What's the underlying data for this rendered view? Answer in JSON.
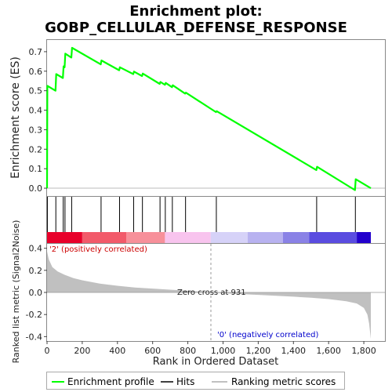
{
  "chart_data": {
    "type": "line",
    "title": "Enrichment plot: GOBP_CELLULAR_DEFENSE_RESPONSE",
    "title_lines": [
      "Enrichment plot:",
      "GOBP_CELLULAR_DEFENSE_RESPONSE"
    ],
    "xlabel": "Rank in Ordered Dataset",
    "xlim": [
      0,
      1920
    ],
    "x_ticks": [
      0,
      200,
      400,
      600,
      800,
      1000,
      1200,
      1400,
      1600,
      1800
    ],
    "x_tick_labels": [
      "0",
      "200",
      "400",
      "600",
      "800",
      "1,000",
      "1,200",
      "1,400",
      "1,600",
      "1,800"
    ],
    "panels": {
      "enrichment": {
        "ylabel": "Enrichment score (ES)",
        "ylim": [
          -0.04,
          0.76
        ],
        "y_ticks": [
          0.0,
          0.1,
          0.2,
          0.3,
          0.4,
          0.5,
          0.6,
          0.7
        ],
        "y_tick_labels": [
          "0.0",
          "0.1",
          "0.2",
          "0.3",
          "0.4",
          "0.5",
          "0.6",
          "0.7"
        ],
        "color": "#00ff00",
        "series": [
          {
            "name": "Enrichment profile",
            "x": [
              0,
              2,
              48,
              52,
              90,
              94,
              100,
              104,
              138,
              142,
              305,
              309,
              410,
              414,
              490,
              494,
              540,
              544,
              640,
              644,
              670,
              674,
              710,
              714,
              785,
              789,
              960,
              964,
              1530,
              1534,
              1750,
              1754,
              1840
            ],
            "y": [
              0.0,
              0.525,
              0.5,
              0.585,
              0.565,
              0.625,
              0.62,
              0.69,
              0.67,
              0.72,
              0.635,
              0.655,
              0.605,
              0.62,
              0.585,
              0.598,
              0.575,
              0.588,
              0.535,
              0.545,
              0.53,
              0.54,
              0.518,
              0.528,
              0.485,
              0.49,
              0.39,
              0.395,
              0.093,
              0.11,
              -0.01,
              0.046,
              0.0
            ]
          }
        ]
      },
      "hits": {
        "ylabel": "",
        "x": [
          2,
          50,
          92,
          102,
          140,
          307,
          412,
          492,
          542,
          642,
          672,
          712,
          787,
          962,
          1532,
          1752
        ]
      },
      "gradient_bar": {
        "segments": [
          {
            "x0": 0,
            "x1": 200,
            "color": "#e8002a"
          },
          {
            "x0": 200,
            "x1": 450,
            "color": "#f25a6a"
          },
          {
            "x0": 450,
            "x1": 670,
            "color": "#f7909a"
          },
          {
            "x0": 670,
            "x1": 930,
            "color": "#f8c4ee"
          },
          {
            "x0": 930,
            "x1": 1140,
            "color": "#d6d2f8"
          },
          {
            "x0": 1140,
            "x1": 1340,
            "color": "#b8b2f0"
          },
          {
            "x0": 1340,
            "x1": 1490,
            "color": "#8a82e6"
          },
          {
            "x0": 1490,
            "x1": 1760,
            "color": "#5a4ce0"
          },
          {
            "x0": 1760,
            "x1": 1840,
            "color": "#2200cc"
          }
        ]
      },
      "metric": {
        "ylabel": "Ranked list metric (Signal2Noise)",
        "ylim": [
          -0.44,
          0.44
        ],
        "y_ticks": [
          -0.4,
          -0.2,
          0.0,
          0.2,
          0.4
        ],
        "y_tick_labels": [
          "-0.4",
          "-0.2",
          "0.0",
          "0.2",
          "0.4"
        ],
        "fill_color": "#c0c0c0",
        "x": [
          0,
          10,
          30,
          60,
          100,
          150,
          200,
          300,
          400,
          500,
          600,
          700,
          800,
          900,
          931,
          1000,
          1100,
          1200,
          1300,
          1400,
          1500,
          1600,
          1700,
          1760,
          1800,
          1820,
          1830,
          1840
        ],
        "y": [
          0.37,
          0.3,
          0.23,
          0.19,
          0.16,
          0.13,
          0.11,
          0.08,
          0.06,
          0.045,
          0.035,
          0.025,
          0.015,
          0.005,
          0.0,
          -0.008,
          -0.015,
          -0.022,
          -0.03,
          -0.038,
          -0.048,
          -0.06,
          -0.08,
          -0.1,
          -0.14,
          -0.2,
          -0.28,
          -0.42
        ]
      }
    },
    "annotations": {
      "positive": "'2' (positively correlated)",
      "negative": "'0' (negatively correlated)",
      "zero_cross": "Zero cross at 931",
      "zero_cross_x": 931,
      "positive_color": "#cc0000",
      "negative_color": "#0000cc"
    },
    "legend": {
      "placement": "bottom",
      "entries": [
        {
          "label": "Enrichment profile",
          "color": "#00ff00"
        },
        {
          "label": "Hits",
          "color": "#000000"
        },
        {
          "label": "Ranking metric scores",
          "color": "#c0c0c0"
        }
      ]
    }
  }
}
